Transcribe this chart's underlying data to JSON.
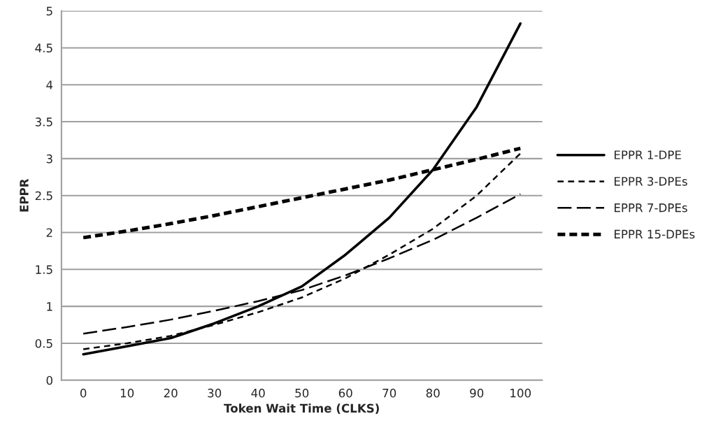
{
  "chart_data": {
    "type": "line",
    "xlabel": "Token Wait Time (CLKS)",
    "ylabel": "EPPR",
    "categories": [
      "0",
      "10",
      "20",
      "30",
      "40",
      "50",
      "60",
      "70",
      "80",
      "90",
      "100"
    ],
    "series": [
      {
        "name": "EPPR 1-DPE",
        "color": "#000000",
        "line_style": "solid",
        "values": [
          0.35,
          0.46,
          0.57,
          0.77,
          1.0,
          1.27,
          1.7,
          2.2,
          2.85,
          3.7,
          4.83
        ]
      },
      {
        "name": "EPPR 3-DPEs",
        "color": "#000000",
        "line_style": "dashed",
        "values": [
          0.42,
          0.5,
          0.6,
          0.75,
          0.92,
          1.12,
          1.38,
          1.7,
          2.05,
          2.5,
          3.07
        ]
      },
      {
        "name": "EPPR 7-DPEs",
        "color": "#000000",
        "line_style": "dashed",
        "values": [
          0.63,
          0.72,
          0.82,
          0.94,
          1.07,
          1.22,
          1.42,
          1.65,
          1.9,
          2.2,
          2.52
        ]
      },
      {
        "name": "EPPR 15-DPEs",
        "color": "#000000",
        "line_style": "dashed",
        "values": [
          1.93,
          2.02,
          2.12,
          2.23,
          2.35,
          2.47,
          2.59,
          2.71,
          2.85,
          2.99,
          3.14
        ]
      }
    ],
    "ylim": [
      0,
      5
    ],
    "yticks": [
      0,
      0.5,
      1,
      1.5,
      2,
      2.5,
      3,
      3.5,
      4,
      4.5,
      5
    ],
    "grid": "y",
    "legend": "right",
    "marker": "none"
  }
}
